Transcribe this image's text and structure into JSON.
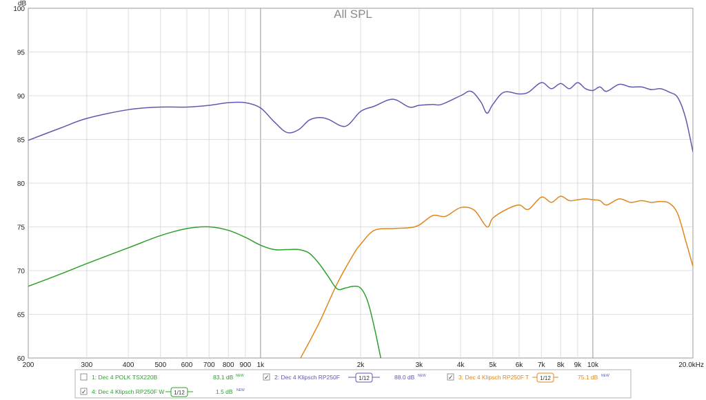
{
  "chart_data": {
    "type": "line",
    "title": "All SPL",
    "ylabel": "dB",
    "xscale": "log",
    "xlim": [
      200,
      20000
    ],
    "ylim": [
      60,
      100
    ],
    "grid": true,
    "x_ticks": [
      200,
      300,
      400,
      500,
      600,
      700,
      800,
      900,
      1000,
      2000,
      3000,
      4000,
      5000,
      6000,
      7000,
      8000,
      9000,
      10000,
      20000
    ],
    "x_tick_labels": [
      "200",
      "300",
      "400",
      "500",
      "600",
      "700",
      "800",
      "900",
      "1k",
      "2k",
      "3k",
      "4k",
      "5k",
      "6k",
      "7k",
      "8k",
      "9k",
      "10k",
      "20.0kHz"
    ],
    "y_ticks": [
      60,
      65,
      70,
      75,
      80,
      85,
      90,
      95,
      100
    ],
    "y_tick_labels": [
      "60",
      "65",
      "70",
      "75",
      "80",
      "85",
      "90",
      "95",
      "100"
    ],
    "series": [
      {
        "name": "2: Dec 4 Klipsch RP250F",
        "color": "#5c5ab0",
        "x": [
          200,
          250,
          300,
          400,
          500,
          600,
          700,
          800,
          900,
          1000,
          1100,
          1200,
          1300,
          1400,
          1500,
          1600,
          1800,
          2000,
          2200,
          2500,
          2800,
          3000,
          3300,
          3500,
          4000,
          4300,
          4600,
          4800,
          5000,
          5400,
          6000,
          6400,
          7000,
          7500,
          8000,
          8500,
          9000,
          9500,
          10000,
          10500,
          11000,
          12000,
          13000,
          14000,
          15000,
          16000,
          17000,
          18000,
          19000,
          20000
        ],
        "values": [
          84.9,
          86.3,
          87.4,
          88.4,
          88.7,
          88.7,
          88.9,
          89.2,
          89.2,
          88.6,
          87.0,
          85.8,
          86.1,
          87.2,
          87.5,
          87.3,
          86.5,
          88.2,
          88.8,
          89.6,
          88.7,
          88.9,
          89.0,
          89.0,
          90.0,
          90.5,
          89.3,
          88.0,
          89.0,
          90.4,
          90.2,
          90.4,
          91.5,
          90.8,
          91.4,
          90.8,
          91.5,
          90.8,
          90.6,
          91.0,
          90.5,
          91.3,
          91.0,
          91.0,
          90.7,
          90.8,
          90.4,
          89.8,
          87.5,
          83.6
        ]
      },
      {
        "name": "3: Dec 4 Klipsch RP250F T",
        "color": "#e0861a",
        "x": [
          1320,
          1500,
          1700,
          1900,
          2000,
          2200,
          2500,
          2800,
          3000,
          3300,
          3600,
          4000,
          4400,
          4800,
          5000,
          5500,
          6000,
          6400,
          7000,
          7500,
          8000,
          8500,
          9000,
          9500,
          10000,
          10500,
          11000,
          12000,
          13000,
          14000,
          15000,
          16000,
          17000,
          18000,
          19000,
          20000
        ],
        "values": [
          60.0,
          64.0,
          68.5,
          71.8,
          73.0,
          74.6,
          74.8,
          74.9,
          75.2,
          76.3,
          76.2,
          77.2,
          76.9,
          75.0,
          76.0,
          77.0,
          77.5,
          77.0,
          78.4,
          77.8,
          78.5,
          78.0,
          78.1,
          78.2,
          78.1,
          78.0,
          77.5,
          78.2,
          77.8,
          78.0,
          77.8,
          77.9,
          77.7,
          76.5,
          73.5,
          70.5
        ],
        "smoothing": "1/12",
        "level": "75.1 dB"
      },
      {
        "name": "4: Dec 4 Klipsch RP250F W",
        "color": "#2ca02c",
        "x": [
          200,
          250,
          300,
          400,
          500,
          600,
          700,
          800,
          900,
          1000,
          1100,
          1200,
          1300,
          1400,
          1500,
          1600,
          1700,
          1800,
          1900,
          2000,
          2100,
          2200,
          2300
        ],
        "values": [
          68.2,
          69.6,
          70.8,
          72.6,
          74.0,
          74.8,
          75.0,
          74.6,
          73.8,
          72.9,
          72.4,
          72.4,
          72.4,
          72.0,
          70.8,
          69.3,
          67.9,
          68.0,
          68.2,
          68.0,
          66.5,
          63.5,
          60.0
        ],
        "smoothing": "1/12",
        "level": "1.5 dB"
      }
    ],
    "legend": [
      {
        "name": "1: Dec 4 POLK TSX220B",
        "checked": false,
        "level": "83.1 dB",
        "new": "NEW",
        "color": "#2ca02c"
      },
      {
        "name": "2: Dec 4 Klipsch RP250F",
        "checked": true,
        "smoothing": "1/12",
        "level": "88.0 dB",
        "new": "NEW",
        "color": "#5c5ab0"
      },
      {
        "name": "3: Dec 4 Klipsch RP250F T",
        "checked": true,
        "smoothing": "1/12",
        "level": "75.1 dB",
        "new": "NEW",
        "color": "#e0861a"
      },
      {
        "name": "4: Dec 4 Klipsch RP250F W",
        "checked": true,
        "smoothing": "1/12",
        "level": "1.5 dB",
        "new": "NEW",
        "color": "#2ca02c"
      }
    ],
    "legend_position": "bottom"
  }
}
